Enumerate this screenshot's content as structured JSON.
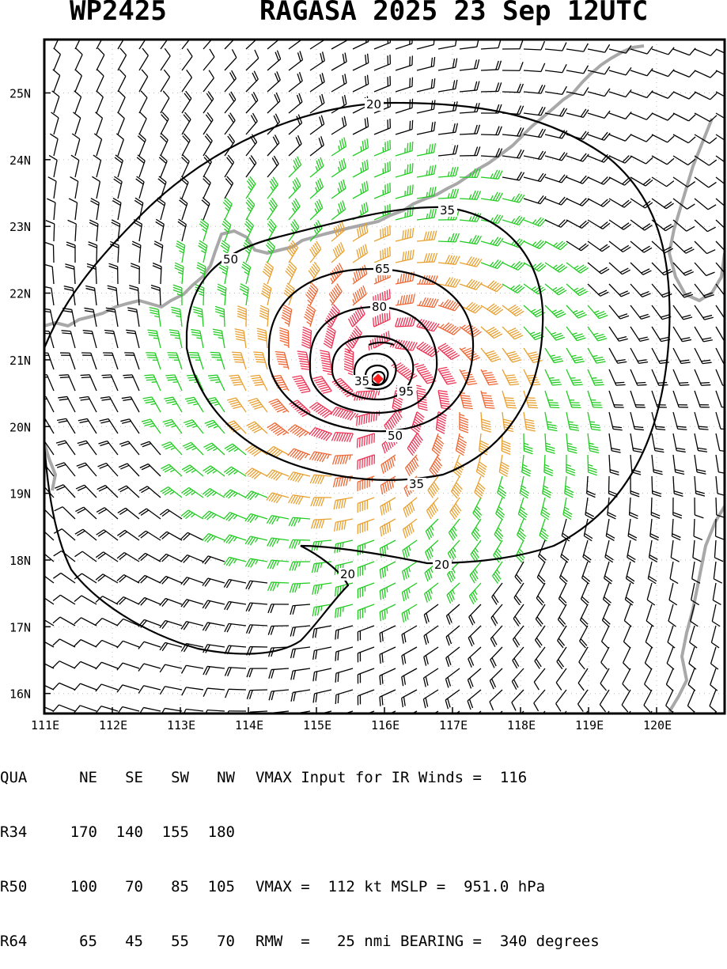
{
  "title": {
    "left": "WP2425",
    "right": "RAGASA 2025 23 Sep 12UTC"
  },
  "map": {
    "lat_labels": [
      "25N",
      "24N",
      "23N",
      "22N",
      "21N",
      "20N",
      "19N",
      "18N",
      "17N",
      "16N"
    ],
    "lon_labels": [
      "111E",
      "112E",
      "113E",
      "114E",
      "115E",
      "116E",
      "117E",
      "118E",
      "119E",
      "120E"
    ],
    "lat_range": [
      15.7,
      25.8
    ],
    "lon_range": [
      111.0,
      121.0
    ],
    "center": {
      "lat": 20.7,
      "lon": 115.9
    },
    "contour_labels": [
      "20",
      "35",
      "50",
      "65",
      "80",
      "95",
      "35",
      "50",
      "35",
      "20",
      "20"
    ],
    "colors": {
      "coast": "#a8a8a8",
      "contour": "#000000",
      "barb_low": "#000000",
      "barb_34": "#22cc22",
      "barb_50": "#e8a030",
      "barb_64": "#ee6633",
      "barb_high": "#ee3355",
      "center": "#ff2020"
    }
  },
  "table": {
    "header": [
      "QUA",
      "NE",
      "SE",
      "SW",
      "NW"
    ],
    "rows": [
      [
        "R34",
        "170",
        "140",
        "155",
        "180"
      ],
      [
        "R50",
        "100",
        "70",
        "85",
        "105"
      ],
      [
        "R64",
        "65",
        "45",
        "55",
        "70"
      ]
    ],
    "info": [
      "VMAX Input for IR Winds =  116",
      "",
      "VMAX =  112 kt MSLP =  951.0 hPa",
      "RMW  =   25 nmi BEARING =  340 degrees"
    ]
  }
}
